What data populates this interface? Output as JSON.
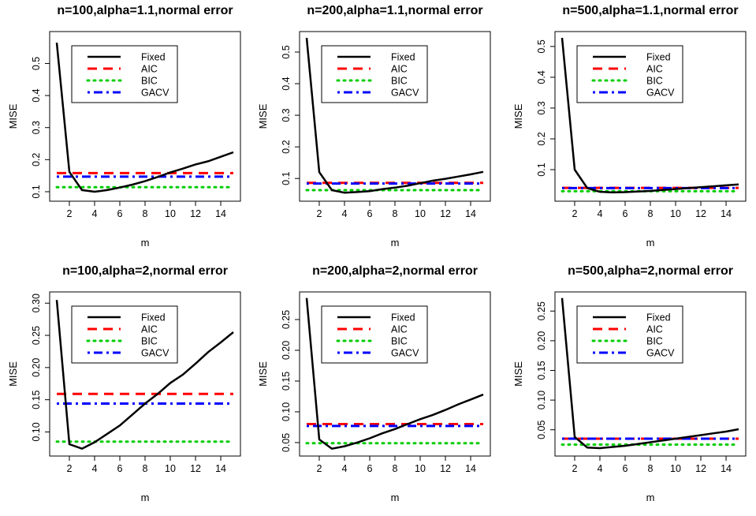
{
  "chart_data": [
    {
      "type": "line",
      "title": "n=100,alpha=1.1,normal error",
      "xlabel": "m",
      "ylabel": "MISE",
      "xlim": [
        1,
        15
      ],
      "ylim": [
        0.09,
        0.58
      ],
      "xticks": [
        2,
        4,
        6,
        8,
        10,
        12,
        14
      ],
      "yticks": [
        0.1,
        0.2,
        0.3,
        0.4,
        0.5
      ],
      "ytick_labels": [
        "0.1",
        "0.2",
        "0.3",
        "0.4",
        "0.5"
      ],
      "x": [
        1,
        2,
        3,
        4,
        5,
        6,
        7,
        8,
        9,
        10,
        11,
        12,
        13,
        14,
        15
      ],
      "legend_position": "top-left",
      "series": [
        {
          "name": "Fixed",
          "color": "#000000",
          "style": "solid",
          "values": [
            0.565,
            0.162,
            0.105,
            0.1,
            0.105,
            0.113,
            0.122,
            0.133,
            0.146,
            0.16,
            0.172,
            0.185,
            0.195,
            0.209,
            0.223
          ]
        },
        {
          "name": "AIC",
          "color": "#ff0000",
          "style": "dashed",
          "values": [
            0.158,
            0.158,
            0.158,
            0.158,
            0.158,
            0.158,
            0.158,
            0.158,
            0.158,
            0.158,
            0.158,
            0.158,
            0.158,
            0.158,
            0.158
          ]
        },
        {
          "name": "BIC",
          "color": "#00cd00",
          "style": "dotted",
          "values": [
            0.114,
            0.114,
            0.114,
            0.114,
            0.114,
            0.114,
            0.114,
            0.114,
            0.114,
            0.114,
            0.114,
            0.114,
            0.114,
            0.114,
            0.114
          ]
        },
        {
          "name": "GACV",
          "color": "#0000ff",
          "style": "dotdash",
          "values": [
            0.147,
            0.147,
            0.147,
            0.147,
            0.147,
            0.147,
            0.147,
            0.147,
            0.147,
            0.147,
            0.147,
            0.147,
            0.147,
            0.147,
            0.147
          ]
        }
      ]
    },
    {
      "type": "line",
      "title": "n=200,alpha=1.1,normal error",
      "xlabel": "m",
      "ylabel": "MISE",
      "xlim": [
        1,
        15
      ],
      "ylim": [
        0.048,
        0.545
      ],
      "xticks": [
        2,
        4,
        6,
        8,
        10,
        12,
        14
      ],
      "yticks": [
        0.1,
        0.2,
        0.3,
        0.4,
        0.5
      ],
      "ytick_labels": [
        "0.1",
        "0.2",
        "0.3",
        "0.4",
        "0.5"
      ],
      "x": [
        1,
        2,
        3,
        4,
        5,
        6,
        7,
        8,
        9,
        10,
        11,
        12,
        13,
        14,
        15
      ],
      "legend_position": "top-left",
      "series": [
        {
          "name": "Fixed",
          "color": "#000000",
          "style": "solid",
          "values": [
            0.545,
            0.12,
            0.063,
            0.055,
            0.057,
            0.06,
            0.066,
            0.071,
            0.077,
            0.085,
            0.093,
            0.099,
            0.106,
            0.113,
            0.121
          ]
        },
        {
          "name": "AIC",
          "color": "#ff0000",
          "style": "dashed",
          "values": [
            0.086,
            0.086,
            0.086,
            0.086,
            0.086,
            0.086,
            0.086,
            0.086,
            0.086,
            0.086,
            0.086,
            0.086,
            0.086,
            0.086,
            0.086
          ]
        },
        {
          "name": "BIC",
          "color": "#00cd00",
          "style": "dotted",
          "values": [
            0.063,
            0.063,
            0.063,
            0.063,
            0.063,
            0.063,
            0.063,
            0.063,
            0.063,
            0.063,
            0.063,
            0.063,
            0.063,
            0.063,
            0.063
          ]
        },
        {
          "name": "GACV",
          "color": "#0000ff",
          "style": "dotdash",
          "values": [
            0.084,
            0.084,
            0.084,
            0.084,
            0.084,
            0.084,
            0.084,
            0.084,
            0.084,
            0.084,
            0.084,
            0.084,
            0.084,
            0.084,
            0.084
          ]
        }
      ]
    },
    {
      "type": "line",
      "title": "n=500,alpha=1.1,normal error",
      "xlabel": "m",
      "ylabel": "MISE",
      "xlim": [
        1,
        15
      ],
      "ylim": [
        0.018,
        0.528
      ],
      "xticks": [
        2,
        4,
        6,
        8,
        10,
        12,
        14
      ],
      "yticks": [
        0.1,
        0.2,
        0.3,
        0.4,
        0.5
      ],
      "ytick_labels": [
        "0.1",
        "0.2",
        "0.3",
        "0.4",
        "0.5"
      ],
      "x": [
        1,
        2,
        3,
        4,
        5,
        6,
        7,
        8,
        9,
        10,
        11,
        12,
        13,
        14,
        15
      ],
      "legend_position": "top-left",
      "series": [
        {
          "name": "Fixed",
          "color": "#000000",
          "style": "solid",
          "values": [
            0.528,
            0.1,
            0.04,
            0.028,
            0.026,
            0.027,
            0.029,
            0.031,
            0.034,
            0.037,
            0.04,
            0.043,
            0.046,
            0.049,
            0.052
          ]
        },
        {
          "name": "AIC",
          "color": "#ff0000",
          "style": "dashed",
          "values": [
            0.041,
            0.041,
            0.041,
            0.041,
            0.041,
            0.041,
            0.041,
            0.041,
            0.041,
            0.041,
            0.041,
            0.041,
            0.041,
            0.041,
            0.041
          ]
        },
        {
          "name": "BIC",
          "color": "#00cd00",
          "style": "dotted",
          "values": [
            0.03,
            0.03,
            0.03,
            0.03,
            0.03,
            0.03,
            0.03,
            0.03,
            0.03,
            0.03,
            0.03,
            0.03,
            0.03,
            0.03,
            0.03
          ]
        },
        {
          "name": "GACV",
          "color": "#0000ff",
          "style": "dotdash",
          "values": [
            0.04,
            0.04,
            0.04,
            0.04,
            0.04,
            0.04,
            0.04,
            0.04,
            0.04,
            0.04,
            0.04,
            0.04,
            0.04,
            0.04,
            0.04
          ]
        }
      ]
    },
    {
      "type": "line",
      "title": "n=100,alpha=2,normal error",
      "xlabel": "m",
      "ylabel": "MISE",
      "xlim": [
        1,
        15
      ],
      "ylim": [
        0.072,
        0.308
      ],
      "xticks": [
        2,
        4,
        6,
        8,
        10,
        12,
        14
      ],
      "yticks": [
        0.1,
        0.15,
        0.2,
        0.25,
        0.3
      ],
      "ytick_labels": [
        "0.10",
        "0.15",
        "0.20",
        "0.25",
        "0.30"
      ],
      "x": [
        1,
        2,
        3,
        4,
        5,
        6,
        7,
        8,
        9,
        10,
        11,
        12,
        13,
        14,
        15
      ],
      "legend_position": "top-left",
      "series": [
        {
          "name": "Fixed",
          "color": "#000000",
          "style": "solid",
          "values": [
            0.305,
            0.081,
            0.074,
            0.084,
            0.097,
            0.11,
            0.127,
            0.144,
            0.159,
            0.176,
            0.189,
            0.206,
            0.224,
            0.239,
            0.255
          ]
        },
        {
          "name": "AIC",
          "color": "#ff0000",
          "style": "dashed",
          "values": [
            0.159,
            0.159,
            0.159,
            0.159,
            0.159,
            0.159,
            0.159,
            0.159,
            0.159,
            0.159,
            0.159,
            0.159,
            0.159,
            0.159,
            0.159
          ]
        },
        {
          "name": "BIC",
          "color": "#00cd00",
          "style": "dotted",
          "values": [
            0.085,
            0.085,
            0.085,
            0.085,
            0.085,
            0.085,
            0.085,
            0.085,
            0.085,
            0.085,
            0.085,
            0.085,
            0.085,
            0.085,
            0.085
          ]
        },
        {
          "name": "GACV",
          "color": "#0000ff",
          "style": "dotdash",
          "values": [
            0.144,
            0.144,
            0.144,
            0.144,
            0.144,
            0.144,
            0.144,
            0.144,
            0.144,
            0.144,
            0.144,
            0.144,
            0.144,
            0.144,
            0.144
          ]
        }
      ]
    },
    {
      "type": "line",
      "title": "n=200,alpha=2,normal error",
      "xlabel": "m",
      "ylabel": "MISE",
      "xlim": [
        1,
        15
      ],
      "ylim": [
        0.038,
        0.285
      ],
      "xticks": [
        2,
        4,
        6,
        8,
        10,
        12,
        14
      ],
      "yticks": [
        0.05,
        0.1,
        0.15,
        0.2,
        0.25
      ],
      "ytick_labels": [
        "0.05",
        "0.10",
        "0.15",
        "0.20",
        "0.25"
      ],
      "x": [
        1,
        2,
        3,
        4,
        5,
        6,
        7,
        8,
        9,
        10,
        11,
        12,
        13,
        14,
        15
      ],
      "legend_position": "top-left",
      "series": [
        {
          "name": "Fixed",
          "color": "#000000",
          "style": "solid",
          "values": [
            0.285,
            0.055,
            0.04,
            0.044,
            0.05,
            0.057,
            0.065,
            0.072,
            0.08,
            0.088,
            0.095,
            0.103,
            0.112,
            0.12,
            0.128
          ]
        },
        {
          "name": "AIC",
          "color": "#ff0000",
          "style": "dashed",
          "values": [
            0.08,
            0.08,
            0.08,
            0.08,
            0.08,
            0.08,
            0.08,
            0.08,
            0.08,
            0.08,
            0.08,
            0.08,
            0.08,
            0.08,
            0.08
          ]
        },
        {
          "name": "BIC",
          "color": "#00cd00",
          "style": "dotted",
          "values": [
            0.049,
            0.049,
            0.049,
            0.049,
            0.049,
            0.049,
            0.049,
            0.049,
            0.049,
            0.049,
            0.049,
            0.049,
            0.049,
            0.049,
            0.049
          ]
        },
        {
          "name": "GACV",
          "color": "#0000ff",
          "style": "dotdash",
          "values": [
            0.077,
            0.077,
            0.077,
            0.077,
            0.077,
            0.077,
            0.077,
            0.077,
            0.077,
            0.077,
            0.077,
            0.077,
            0.077,
            0.077,
            0.077
          ]
        }
      ]
    },
    {
      "type": "line",
      "title": "n=500,alpha=2,normal error",
      "xlabel": "m",
      "ylabel": "MISE",
      "xlim": [
        1,
        15
      ],
      "ylim": [
        0.016,
        0.272
      ],
      "xticks": [
        2,
        4,
        6,
        8,
        10,
        12,
        14
      ],
      "yticks": [
        0.05,
        0.1,
        0.15,
        0.2,
        0.25
      ],
      "ytick_labels": [
        "0.05",
        "0.10",
        "0.15",
        "0.20",
        "0.25"
      ],
      "x": [
        1,
        2,
        3,
        4,
        5,
        6,
        7,
        8,
        9,
        10,
        11,
        12,
        13,
        14,
        15
      ],
      "legend_position": "top-left",
      "series": [
        {
          "name": "Fixed",
          "color": "#000000",
          "style": "solid",
          "values": [
            0.272,
            0.038,
            0.02,
            0.019,
            0.021,
            0.023,
            0.026,
            0.029,
            0.032,
            0.035,
            0.038,
            0.041,
            0.044,
            0.047,
            0.051
          ]
        },
        {
          "name": "AIC",
          "color": "#ff0000",
          "style": "dashed",
          "values": [
            0.035,
            0.035,
            0.035,
            0.035,
            0.035,
            0.035,
            0.035,
            0.035,
            0.035,
            0.035,
            0.035,
            0.035,
            0.035,
            0.035,
            0.035
          ]
        },
        {
          "name": "BIC",
          "color": "#00cd00",
          "style": "dotted",
          "values": [
            0.025,
            0.025,
            0.025,
            0.025,
            0.025,
            0.025,
            0.025,
            0.025,
            0.025,
            0.025,
            0.025,
            0.025,
            0.025,
            0.025,
            0.025
          ]
        },
        {
          "name": "GACV",
          "color": "#0000ff",
          "style": "dotdash",
          "values": [
            0.035,
            0.035,
            0.035,
            0.035,
            0.035,
            0.035,
            0.035,
            0.035,
            0.035,
            0.035,
            0.035,
            0.035,
            0.035,
            0.035,
            0.035
          ]
        }
      ]
    }
  ]
}
